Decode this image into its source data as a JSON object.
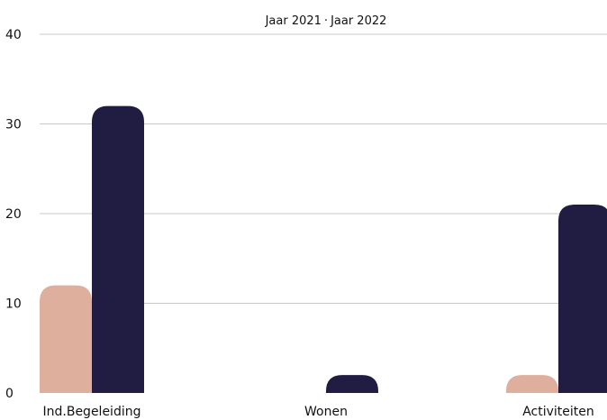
{
  "chart_data": {
    "type": "bar",
    "categories": [
      "Ind.Begeleiding",
      "Wonen",
      "Activiteiten"
    ],
    "series": [
      {
        "name": "Jaar 2021",
        "values": [
          12,
          0,
          2
        ],
        "color": "#deaf9c"
      },
      {
        "name": "Jaar 2022",
        "values": [
          32,
          2,
          21
        ],
        "color": "#211d42"
      }
    ],
    "ylim": [
      0,
      40
    ],
    "yticks": [
      0,
      10,
      20,
      30,
      40
    ],
    "grid": true,
    "legend_position": "top-center",
    "legend_separator": "·"
  }
}
